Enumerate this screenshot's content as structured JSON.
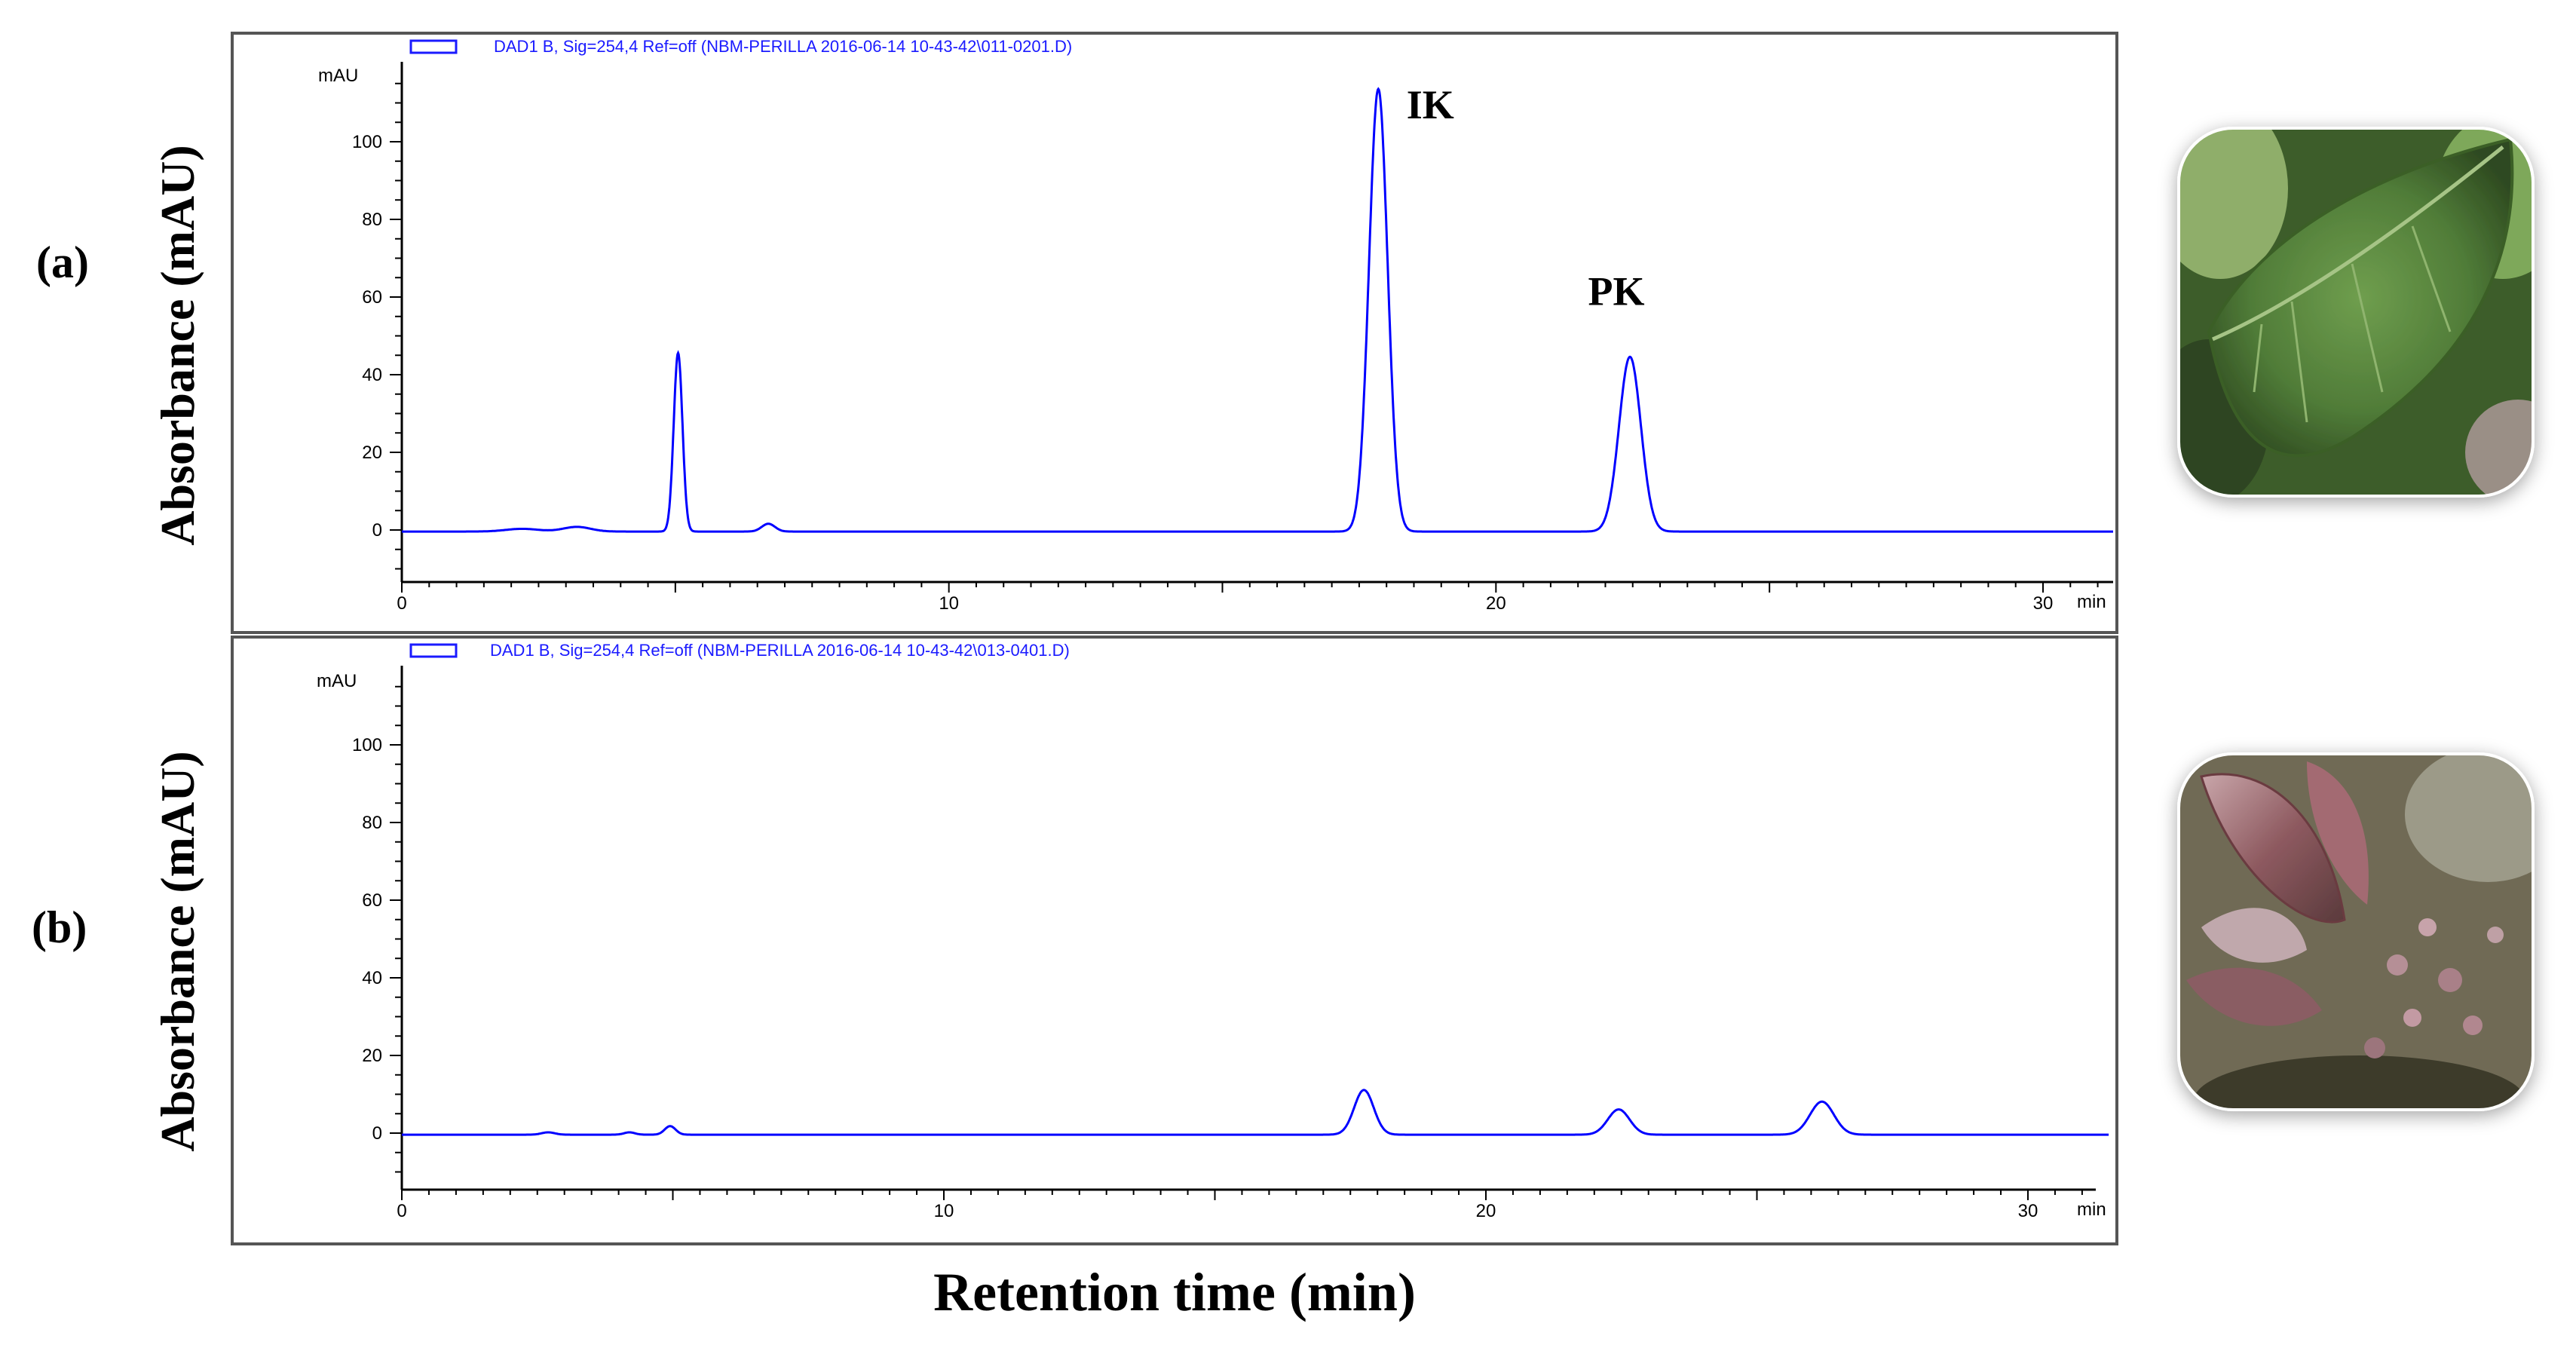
{
  "colors": {
    "trace": "#0000ff",
    "legend": "#1a1aff",
    "axis": "#000000",
    "frame": "#555555"
  },
  "figure": {
    "x_axis_label": "Retention time (min)"
  },
  "chart_data": [
    {
      "type": "line",
      "panel": "(a)",
      "legend": "DAD1 B, Sig=254,4 Ref=off (NBM-PERILLA 2016-06-14 10-43-42\\011-0201.D)",
      "ylabel": "Absorbance (mAU)",
      "y_unit": "mAU",
      "x_unit": "min",
      "xlim": [
        0,
        31.5
      ],
      "ylim": [
        -14,
        115
      ],
      "x_ticks": [
        0,
        10,
        20,
        30
      ],
      "x_tick_labels": [
        "0",
        "10",
        "20",
        "30"
      ],
      "y_ticks": [
        0,
        20,
        40,
        60,
        80,
        100
      ],
      "y_tick_labels": [
        "0",
        "20",
        "40",
        "60",
        "80",
        "100"
      ],
      "annotations": [
        {
          "text": "IK",
          "x": 18.8,
          "y": 106
        },
        {
          "text": "PK",
          "x": 22.2,
          "y": 58
        }
      ],
      "peaks": [
        {
          "rt": 2.2,
          "height": 0.7,
          "width": 0.3
        },
        {
          "rt": 3.2,
          "height": 1.2,
          "width": 0.25
        },
        {
          "rt": 5.05,
          "height": 46,
          "width": 0.08
        },
        {
          "rt": 6.7,
          "height": 2.0,
          "width": 0.12
        },
        {
          "rt": 17.85,
          "height": 114,
          "width": 0.17
        },
        {
          "rt": 22.45,
          "height": 45,
          "width": 0.2
        }
      ]
    },
    {
      "type": "line",
      "panel": "(b)",
      "legend": "DAD1 B, Sig=254,4 Ref=off (NBM-PERILLA 2016-06-14 10-43-42\\013-0401.D)",
      "ylabel": "Absorbance (mAU)",
      "y_unit": "mAU",
      "x_unit": "min",
      "xlim": [
        0,
        31.5
      ],
      "ylim": [
        -14,
        120
      ],
      "x_ticks": [
        0,
        10,
        20,
        30
      ],
      "x_tick_labels": [
        "0",
        "10",
        "20",
        "30"
      ],
      "y_ticks": [
        0,
        20,
        40,
        60,
        80,
        100
      ],
      "y_tick_labels": [
        "0",
        "20",
        "40",
        "60",
        "80",
        "100"
      ],
      "annotations": [],
      "peaks": [
        {
          "rt": 2.7,
          "height": 0.6,
          "width": 0.12
        },
        {
          "rt": 4.2,
          "height": 0.6,
          "width": 0.1
        },
        {
          "rt": 4.95,
          "height": 2.2,
          "width": 0.1
        },
        {
          "rt": 17.75,
          "height": 11.5,
          "width": 0.18
        },
        {
          "rt": 22.45,
          "height": 6.5,
          "width": 0.2
        },
        {
          "rt": 26.2,
          "height": 8.5,
          "width": 0.22
        }
      ]
    }
  ]
}
